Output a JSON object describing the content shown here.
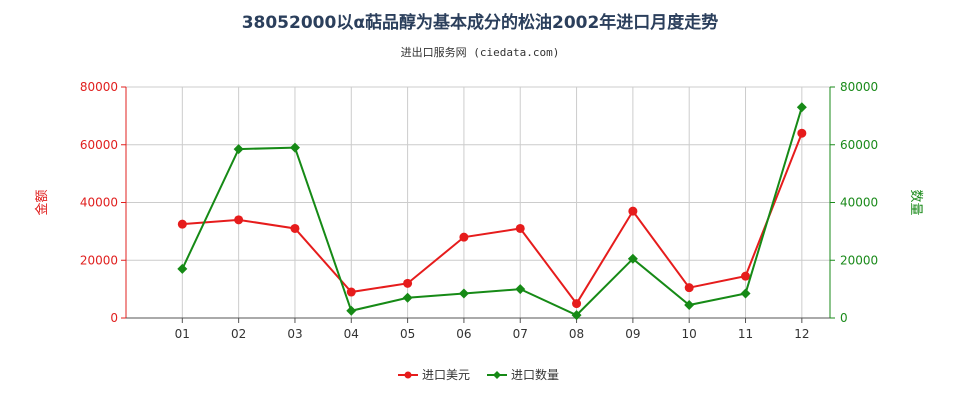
{
  "header": {
    "title": "38052000以α萜品醇为基本成分的松油2002年进口月度走势",
    "subtitle": "进出口服务网 (ciedata.com)"
  },
  "colors": {
    "left_axis": "#e0201f",
    "right_axis": "#1a8a1a",
    "grid": "#cccccc",
    "series_usd": "#e61c1c",
    "series_qty": "#168a16"
  },
  "chart_data": {
    "type": "line",
    "title": "38052000以α萜品醇为基本成分的松油2002年进口月度走势",
    "categories": [
      "01",
      "02",
      "03",
      "04",
      "05",
      "06",
      "07",
      "08",
      "09",
      "10",
      "11",
      "12"
    ],
    "y_left": {
      "label": "金额",
      "ylim": [
        0,
        80000
      ],
      "ticks": [
        0,
        20000,
        40000,
        60000,
        80000
      ]
    },
    "y_right": {
      "label": "数量",
      "ylim": [
        0,
        80000
      ],
      "ticks": [
        0,
        20000,
        40000,
        60000,
        80000
      ]
    },
    "grid": true,
    "legend_position": "bottom-center",
    "series": [
      {
        "name": "进口美元",
        "axis": "left",
        "marker": "circle",
        "values": [
          32500,
          34000,
          31000,
          9000,
          12000,
          28000,
          31000,
          5000,
          37000,
          10500,
          14500,
          64000
        ]
      },
      {
        "name": "进口数量",
        "axis": "right",
        "marker": "diamond",
        "values": [
          17000,
          58500,
          59000,
          2500,
          7000,
          8500,
          10000,
          1000,
          20500,
          4500,
          8500,
          73000
        ]
      }
    ]
  }
}
